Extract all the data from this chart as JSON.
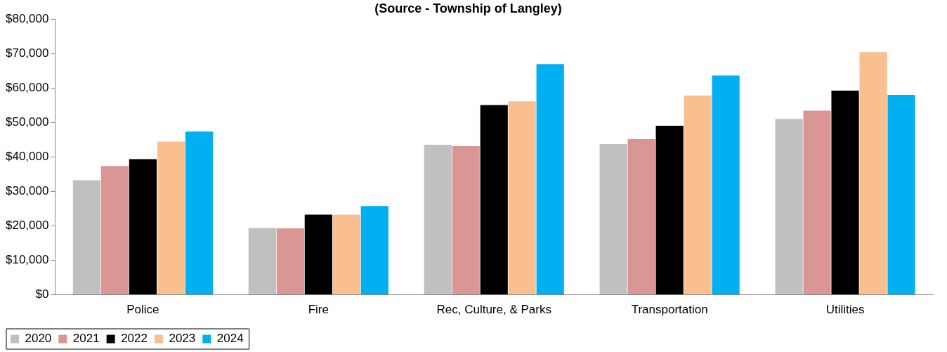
{
  "chart_data": {
    "type": "bar",
    "title": "(Source - Township of Langley)",
    "categories": [
      "Police",
      "Fire",
      "Rec, Culture, & Parks",
      "Transportation",
      "Utilities"
    ],
    "series": [
      {
        "name": "2020",
        "color": "#c0c0c0",
        "values": [
          33300,
          19400,
          43600,
          43800,
          51100
        ]
      },
      {
        "name": "2021",
        "color": "#d99694",
        "values": [
          37400,
          19300,
          43200,
          45200,
          53500
        ]
      },
      {
        "name": "2022",
        "color": "#000000",
        "values": [
          39400,
          23300,
          55100,
          49100,
          59300
        ]
      },
      {
        "name": "2023",
        "color": "#f9bf8f",
        "values": [
          44500,
          23300,
          56200,
          57900,
          70500
        ]
      },
      {
        "name": "2024",
        "color": "#00b0f0",
        "values": [
          47400,
          25800,
          67000,
          63700,
          58100
        ]
      }
    ],
    "ylim": [
      0,
      80000
    ],
    "yticks": [
      {
        "value": 0,
        "label": "$0"
      },
      {
        "value": 10000,
        "label": "$10,000"
      },
      {
        "value": 20000,
        "label": "$20,000"
      },
      {
        "value": 30000,
        "label": "$30,000"
      },
      {
        "value": 40000,
        "label": "$40,000"
      },
      {
        "value": 50000,
        "label": "$50,000"
      },
      {
        "value": 60000,
        "label": "$60,000"
      },
      {
        "value": 70000,
        "label": "$70,000"
      },
      {
        "value": 80000,
        "label": "$80,000"
      }
    ],
    "grid": false,
    "legend": "bottom left"
  }
}
